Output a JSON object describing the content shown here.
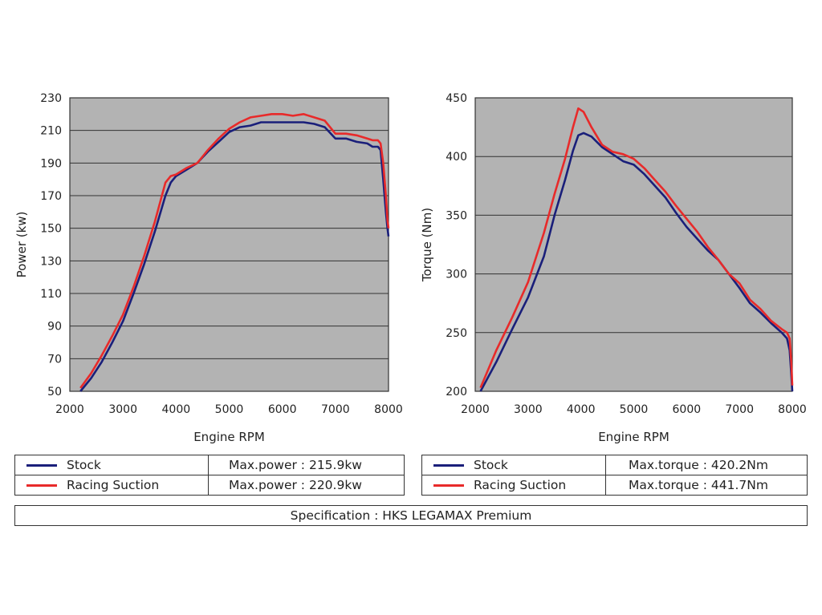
{
  "chart_data": [
    {
      "type": "line",
      "xlabel": "Engine RPM",
      "ylabel": "Power (kw)",
      "xlim": [
        2000,
        8000
      ],
      "ylim": [
        50,
        230
      ],
      "xticks": [
        2000,
        3000,
        4000,
        5000,
        6000,
        7000,
        8000
      ],
      "yticks": [
        50,
        70,
        90,
        110,
        130,
        150,
        170,
        190,
        210,
        230
      ],
      "grid": "horizontal",
      "series": [
        {
          "name": "Stock",
          "color": "#1a1f7a",
          "x": [
            2200,
            2400,
            2600,
            2800,
            3000,
            3200,
            3400,
            3600,
            3800,
            3900,
            4000,
            4200,
            4400,
            4600,
            4800,
            5000,
            5200,
            5400,
            5600,
            5800,
            6000,
            6200,
            6400,
            6600,
            6800,
            7000,
            7200,
            7400,
            7600,
            7700,
            7800,
            7850,
            7900,
            7950,
            7980,
            8000
          ],
          "y": [
            50,
            58,
            68,
            80,
            93,
            110,
            128,
            148,
            170,
            178,
            182,
            186,
            190,
            197,
            203,
            209,
            212,
            213,
            215,
            215,
            215,
            215,
            215,
            214,
            212,
            205,
            205,
            203,
            202,
            200,
            200,
            198,
            180,
            160,
            150,
            145
          ]
        },
        {
          "name": "Racing Suction",
          "color": "#e82a2a",
          "x": [
            2200,
            2400,
            2600,
            2800,
            3000,
            3200,
            3400,
            3600,
            3800,
            3900,
            4000,
            4200,
            4400,
            4600,
            4800,
            5000,
            5200,
            5400,
            5600,
            5800,
            6000,
            6200,
            6400,
            6600,
            6800,
            7000,
            7200,
            7400,
            7600,
            7700,
            7800,
            7850,
            7900,
            7950,
            7980,
            8000
          ],
          "y": [
            52,
            61,
            72,
            84,
            97,
            114,
            133,
            154,
            178,
            182,
            183,
            187,
            190,
            198,
            205,
            211,
            215,
            218,
            219,
            220,
            220,
            219,
            220,
            218,
            216,
            208,
            208,
            207,
            205,
            204,
            204,
            202,
            190,
            170,
            155,
            150
          ]
        }
      ]
    },
    {
      "type": "line",
      "xlabel": "Engine RPM",
      "ylabel": "Torque (Nm)",
      "xlim": [
        2000,
        8000
      ],
      "ylim": [
        200,
        450
      ],
      "xticks": [
        2000,
        3000,
        4000,
        5000,
        6000,
        7000,
        8000
      ],
      "yticks": [
        200,
        250,
        300,
        350,
        400,
        450
      ],
      "grid": "horizontal",
      "series": [
        {
          "name": "Stock",
          "color": "#1a1f7a",
          "x": [
            2100,
            2400,
            2700,
            3000,
            3300,
            3500,
            3700,
            3850,
            3950,
            4050,
            4200,
            4400,
            4600,
            4800,
            5000,
            5200,
            5400,
            5600,
            5800,
            6000,
            6200,
            6400,
            6600,
            6800,
            7000,
            7200,
            7400,
            7600,
            7800,
            7900,
            7950,
            7980,
            8000
          ],
          "y": [
            200,
            225,
            253,
            280,
            315,
            350,
            380,
            405,
            418,
            420,
            417,
            408,
            402,
            396,
            393,
            385,
            375,
            365,
            352,
            340,
            330,
            320,
            312,
            300,
            288,
            275,
            267,
            258,
            250,
            245,
            235,
            215,
            200
          ]
        },
        {
          "name": "Racing Suction",
          "color": "#e82a2a",
          "x": [
            2100,
            2400,
            2700,
            3000,
            3300,
            3500,
            3700,
            3850,
            3950,
            4050,
            4200,
            4400,
            4600,
            4800,
            5000,
            5200,
            5400,
            5600,
            5800,
            6000,
            6200,
            6400,
            6600,
            6800,
            7000,
            7200,
            7400,
            7600,
            7800,
            7900,
            7950,
            7980,
            8000
          ],
          "y": [
            203,
            235,
            263,
            293,
            335,
            368,
            398,
            425,
            441,
            438,
            425,
            410,
            404,
            402,
            398,
            390,
            380,
            370,
            358,
            347,
            336,
            323,
            312,
            300,
            292,
            278,
            270,
            260,
            253,
            250,
            245,
            225,
            205
          ]
        }
      ]
    }
  ],
  "legends": [
    {
      "rows": [
        {
          "name": "Stock",
          "value": "Max.power : 215.9kw"
        },
        {
          "name": "Racing Suction",
          "value": "Max.power : 220.9kw"
        }
      ]
    },
    {
      "rows": [
        {
          "name": "Stock",
          "value": "Max.torque : 420.2Nm"
        },
        {
          "name": "Racing Suction",
          "value": "Max.torque : 441.7Nm"
        }
      ]
    }
  ],
  "specification": "Specification : HKS LEGAMAX Premium"
}
